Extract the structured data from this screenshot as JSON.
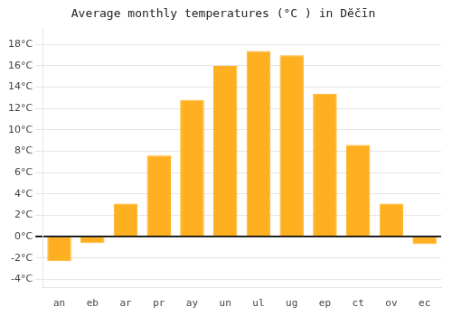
{
  "chart_data": {
    "type": "bar",
    "title": "Average monthly temperatures (°C ) in Dĕčīn",
    "categories": [
      "an",
      "eb",
      "ar",
      "pr",
      "ay",
      "un",
      "ul",
      "ug",
      "ep",
      "ct",
      "ov",
      "ec"
    ],
    "values": [
      -2.3,
      -0.6,
      3.1,
      7.6,
      12.8,
      16.0,
      17.4,
      17.0,
      13.4,
      8.6,
      3.1,
      -0.7
    ],
    "color": "#FFB020",
    "ylim": [
      -4.8,
      19.5
    ],
    "yticks": [
      {
        "value": -4,
        "label": "-4°C"
      },
      {
        "value": -2,
        "label": "-2°C"
      },
      {
        "value": 0,
        "label": "0°C"
      },
      {
        "value": 2,
        "label": "2°C"
      },
      {
        "value": 4,
        "label": "4°C"
      },
      {
        "value": 6,
        "label": "6°C"
      },
      {
        "value": 8,
        "label": "8°C"
      },
      {
        "value": 10,
        "label": "10°C"
      },
      {
        "value": 12,
        "label": "12°C"
      },
      {
        "value": 14,
        "label": "14°C"
      },
      {
        "value": 16,
        "label": "16°C"
      },
      {
        "value": 18,
        "label": "18°C"
      }
    ],
    "grid": true
  }
}
